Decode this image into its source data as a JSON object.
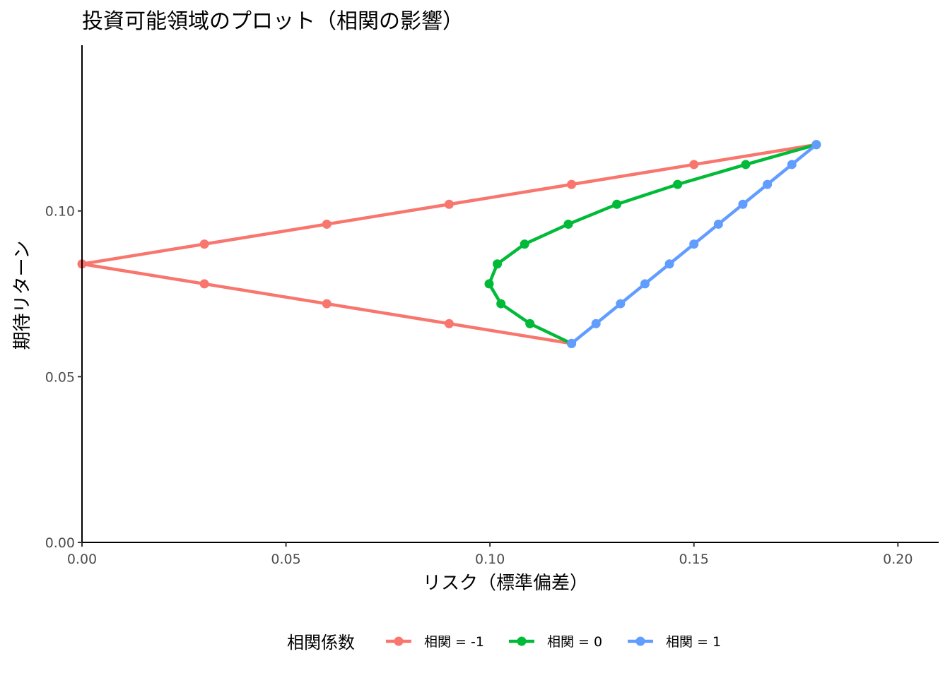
{
  "chart_data": {
    "type": "line",
    "title": "投資可能領域のプロット（相関の影響）",
    "xlabel": "リスク（標準偏差）",
    "ylabel": "期待リターン",
    "xlim": [
      0,
      0.21
    ],
    "ylim": [
      0,
      0.15
    ],
    "x_ticks": [
      0.0,
      0.05,
      0.1,
      0.15,
      0.2
    ],
    "x_tick_labels": [
      "0.00",
      "0.05",
      "0.10",
      "0.15",
      "0.20"
    ],
    "y_ticks": [
      0.0,
      0.05,
      0.1
    ],
    "y_tick_labels": [
      "0.00",
      "0.05",
      "0.10"
    ],
    "grid": false,
    "legend_position": "bottom",
    "legend_title": "相関係数",
    "series": [
      {
        "name": "相関 = -1",
        "color": "#F8766D",
        "points": [
          [
            0.12,
            0.06
          ],
          [
            0.09,
            0.066
          ],
          [
            0.06,
            0.072
          ],
          [
            0.03,
            0.078
          ],
          [
            0.0,
            0.084
          ],
          [
            0.03,
            0.09
          ],
          [
            0.06,
            0.096
          ],
          [
            0.09,
            0.102
          ],
          [
            0.12,
            0.108
          ],
          [
            0.15,
            0.114
          ],
          [
            0.18,
            0.12
          ]
        ]
      },
      {
        "name": "相関 = 0",
        "color": "#00BA38",
        "points": [
          [
            0.12,
            0.06
          ],
          [
            0.1098,
            0.066
          ],
          [
            0.1027,
            0.072
          ],
          [
            0.0998,
            0.078
          ],
          [
            0.1018,
            0.084
          ],
          [
            0.1085,
            0.09
          ],
          [
            0.1192,
            0.096
          ],
          [
            0.1311,
            0.102
          ],
          [
            0.146,
            0.108
          ],
          [
            0.1627,
            0.114
          ],
          [
            0.18,
            0.12
          ]
        ]
      },
      {
        "name": "相関 = 1",
        "color": "#619CFF",
        "points": [
          [
            0.12,
            0.06
          ],
          [
            0.126,
            0.066
          ],
          [
            0.132,
            0.072
          ],
          [
            0.138,
            0.078
          ],
          [
            0.144,
            0.084
          ],
          [
            0.15,
            0.09
          ],
          [
            0.156,
            0.096
          ],
          [
            0.162,
            0.102
          ],
          [
            0.168,
            0.108
          ],
          [
            0.174,
            0.114
          ],
          [
            0.18,
            0.12
          ]
        ]
      }
    ]
  }
}
